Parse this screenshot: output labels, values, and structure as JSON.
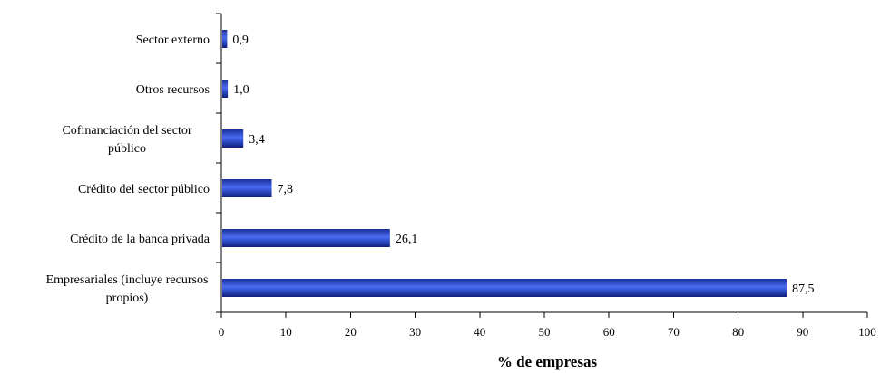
{
  "chart_data": {
    "type": "bar",
    "orientation": "horizontal",
    "title": "",
    "xlabel": "% de empresas",
    "ylabel": "",
    "xlim": [
      0,
      100
    ],
    "x_ticks": [
      0,
      10,
      20,
      30,
      40,
      50,
      60,
      70,
      80,
      90,
      100
    ],
    "grid": false,
    "legend": "none",
    "bar_color": "#2a48c8",
    "bars": [
      {
        "lines": [
          "Sector externo"
        ],
        "value": 0.9,
        "value_label": "0,9"
      },
      {
        "lines": [
          "Otros recursos"
        ],
        "value": 1.0,
        "value_label": "1,0"
      },
      {
        "lines": [
          "Cofinanciación del sector",
          "público"
        ],
        "value": 3.4,
        "value_label": "3,4"
      },
      {
        "lines": [
          "Crédito del sector público"
        ],
        "value": 7.8,
        "value_label": "7,8"
      },
      {
        "lines": [
          "Crédito de la banca privada"
        ],
        "value": 26.1,
        "value_label": "26,1"
      },
      {
        "lines": [
          "Empresariales (incluye recursos",
          "propios)"
        ],
        "value": 87.5,
        "value_label": "87,5"
      }
    ]
  }
}
